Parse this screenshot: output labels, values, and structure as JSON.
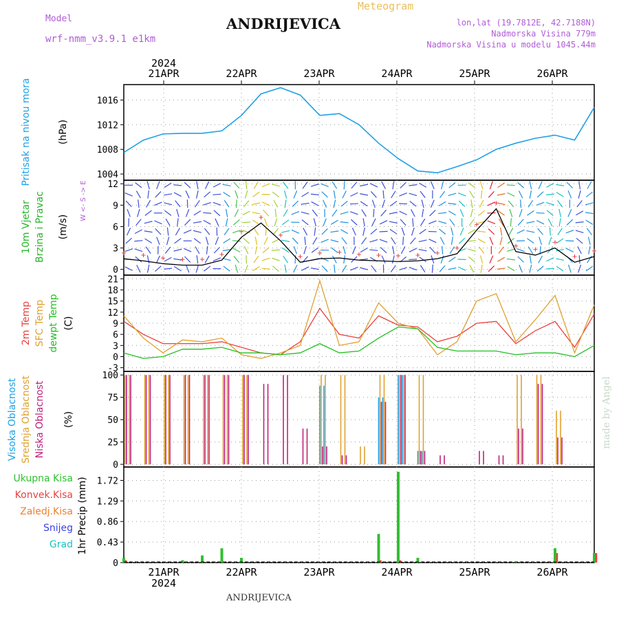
{
  "header": {
    "model_label": "Model",
    "model_name": "wrf-nmm_v3.9.1 e1km",
    "meteogram": "Meteogram",
    "station": "ANDRIJEVICA",
    "lonlat": "lon,lat (19.7812E, 42.7188N)",
    "elevation": "Nadmorska Visina 779m",
    "model_elevation": "Nadmorska Visina u modelu 1045.44m",
    "watermark": "made by Angel",
    "footer": "ANDRIJEVICA"
  },
  "colors": {
    "pressure": "#1ea0e6",
    "wind_label": "#28b428",
    "temp2m": "#e84040",
    "sfc": "#e0a030",
    "dew": "#20c020",
    "high_cloud": "#1ea0e6",
    "mid_cloud": "#e0a030",
    "low_cloud": "#c0207a",
    "precip_total": "#30c030",
    "precip_conv": "#e84040",
    "precip_frozen": "#f08030",
    "snow": "#4040e0",
    "graupel": "#20c0c0",
    "purple": "#b05cd6"
  },
  "chart_data": [
    {
      "type": "line",
      "name": "pressure",
      "ylabel_lines": [
        "Pritisak na nivou mora",
        "(hPa)"
      ],
      "yticks": [
        1004,
        1008,
        1012,
        1016
      ],
      "ylim": [
        1003,
        1018.5
      ],
      "x_top_year": "2024",
      "x_ticks": [
        "21APR",
        "22APR",
        "23APR",
        "24APR",
        "25APR",
        "26APR"
      ],
      "x_hours": [
        0,
        6,
        12,
        18,
        24,
        30,
        36,
        42,
        48,
        54,
        60,
        66,
        72,
        78,
        84,
        90,
        96,
        102,
        108,
        114,
        120,
        126,
        132,
        138,
        144
      ],
      "values": [
        1007.5,
        1009.5,
        1010.5,
        1010.6,
        1010.6,
        1011.0,
        1013.5,
        1017.0,
        1018.0,
        1016.8,
        1013.5,
        1013.8,
        1012.0,
        1009.0,
        1006.5,
        1004.5,
        1004.2,
        1005.2,
        1006.3,
        1008.0,
        1009.0,
        1009.8,
        1010.3,
        1009.5,
        1014.8
      ]
    },
    {
      "type": "line",
      "name": "wind",
      "ylabel_lines": [
        "10m Vjetar",
        "Brzina i Pravac",
        "(m/s)"
      ],
      "compass": "W <- S -> E",
      "yticks": [
        0,
        3,
        6,
        9,
        12
      ],
      "ylim": [
        -0.8,
        12.5
      ],
      "x_hours": [
        0,
        6,
        12,
        18,
        24,
        30,
        36,
        42,
        48,
        54,
        60,
        66,
        72,
        78,
        84,
        90,
        96,
        102,
        108,
        114,
        120,
        126,
        132,
        138,
        144
      ],
      "values": [
        1.5,
        1.2,
        0.8,
        0.6,
        0.6,
        1.3,
        4.5,
        6.5,
        4.0,
        1.0,
        1.5,
        1.6,
        1.3,
        1.2,
        1.1,
        1.2,
        1.5,
        2.2,
        5.5,
        8.5,
        2.5,
        2.0,
        3.0,
        1.0,
        1.8
      ]
    },
    {
      "type": "line",
      "name": "temperature",
      "ylabel_lines": [
        "2m Temp",
        "SFC Temp",
        "dewpt Temp",
        "(C)"
      ],
      "yticks": [
        -3,
        0,
        3,
        6,
        9,
        12,
        15,
        18,
        21
      ],
      "ylim": [
        -4,
        22
      ],
      "x_hours": [
        0,
        6,
        12,
        18,
        24,
        30,
        36,
        42,
        48,
        54,
        60,
        66,
        72,
        78,
        84,
        90,
        96,
        102,
        108,
        114,
        120,
        126,
        132,
        138,
        144
      ],
      "series": [
        {
          "name": "2m Temp",
          "values": [
            9.5,
            6.0,
            3.5,
            3.5,
            3.5,
            4.0,
            2.5,
            1.0,
            0.5,
            4.0,
            13.0,
            6.0,
            5.0,
            11.0,
            8.5,
            8.0,
            4.0,
            5.5,
            9.0,
            9.5,
            3.5,
            7.0,
            9.5,
            2.5,
            11.5
          ]
        },
        {
          "name": "SFC Temp",
          "values": [
            11.0,
            5.0,
            1.0,
            4.5,
            4.0,
            5.0,
            0.5,
            -0.5,
            1.0,
            3.0,
            20.5,
            3.0,
            4.0,
            14.5,
            9.0,
            7.5,
            0.5,
            4.0,
            15.0,
            17.0,
            4.0,
            10.0,
            16.5,
            1.0,
            14.0
          ]
        },
        {
          "name": "dewpt Temp",
          "values": [
            1.0,
            -0.5,
            0.0,
            2.0,
            2.0,
            2.5,
            1.0,
            1.0,
            0.5,
            1.0,
            3.5,
            1.0,
            1.5,
            5.0,
            8.0,
            7.5,
            2.5,
            1.5,
            1.5,
            1.5,
            0.5,
            1.0,
            1.0,
            0.0,
            3.0
          ]
        }
      ]
    },
    {
      "type": "bar",
      "name": "cloud",
      "ylabel_lines": [
        "Visoka Oblacnost",
        "Srednja Oblacnost",
        "Niska Oblacnost",
        "(%)"
      ],
      "yticks": [
        0,
        25,
        50,
        75,
        100
      ],
      "ylim": [
        -3,
        104
      ],
      "x_hours": [
        0,
        6,
        12,
        18,
        24,
        30,
        36,
        42,
        48,
        54,
        60,
        66,
        72,
        78,
        84,
        90,
        96,
        102,
        108,
        114,
        120,
        126,
        132,
        138,
        144
      ],
      "series": [
        {
          "name": "Visoka Oblacnost",
          "values": [
            0,
            0,
            0,
            0,
            0,
            0,
            0,
            0,
            0,
            0,
            88,
            0,
            0,
            75,
            100,
            15,
            0,
            0,
            0,
            0,
            0,
            0,
            0,
            0,
            0
          ]
        },
        {
          "name": "Srednja Oblacnost",
          "values": [
            100,
            100,
            100,
            100,
            100,
            100,
            100,
            0,
            0,
            0,
            100,
            100,
            20,
            100,
            100,
            100,
            0,
            0,
            0,
            0,
            100,
            100,
            60,
            0,
            0
          ]
        },
        {
          "name": "Niska Oblacnost",
          "values": [
            100,
            100,
            100,
            100,
            100,
            100,
            100,
            90,
            100,
            40,
            20,
            10,
            0,
            70,
            100,
            15,
            10,
            0,
            15,
            10,
            40,
            90,
            30,
            0,
            0
          ]
        }
      ]
    },
    {
      "type": "bar",
      "name": "precip",
      "ylabel_lines": [
        "1hr Precip (mm)"
      ],
      "legend": [
        "Ukupna Kisa",
        "Konvek.Kisa",
        "Zaledj.Kisa",
        "Snijeg",
        "Grad"
      ],
      "yticks": [
        "0",
        "0.43",
        "0.86",
        "1.29",
        "1.72"
      ],
      "ylim": [
        0,
        2.0
      ],
      "x_bottom_ticks": [
        "21APR",
        "22APR",
        "23APR",
        "24APR",
        "25APR",
        "26APR"
      ],
      "x_bottom_year": "2024",
      "x_hours": [
        0,
        6,
        12,
        18,
        24,
        30,
        36,
        42,
        48,
        54,
        60,
        66,
        72,
        78,
        84,
        90,
        96,
        102,
        108,
        114,
        120,
        126,
        132,
        138,
        144
      ],
      "series": [
        {
          "name": "Ukupna Kisa",
          "values": [
            0.1,
            0,
            0,
            0.05,
            0.15,
            0.3,
            0.1,
            0,
            0,
            0,
            0,
            0,
            0,
            0.6,
            1.9,
            0.1,
            0,
            0,
            0,
            0,
            0.02,
            0,
            0.3,
            0,
            0.2
          ]
        },
        {
          "name": "Konvek.Kisa",
          "values": [
            0.05,
            0,
            0,
            0,
            0,
            0.02,
            0,
            0,
            0,
            0,
            0,
            0,
            0,
            0.05,
            0.05,
            0,
            0,
            0,
            0,
            0,
            0,
            0,
            0.2,
            0,
            0.2
          ]
        }
      ]
    }
  ]
}
